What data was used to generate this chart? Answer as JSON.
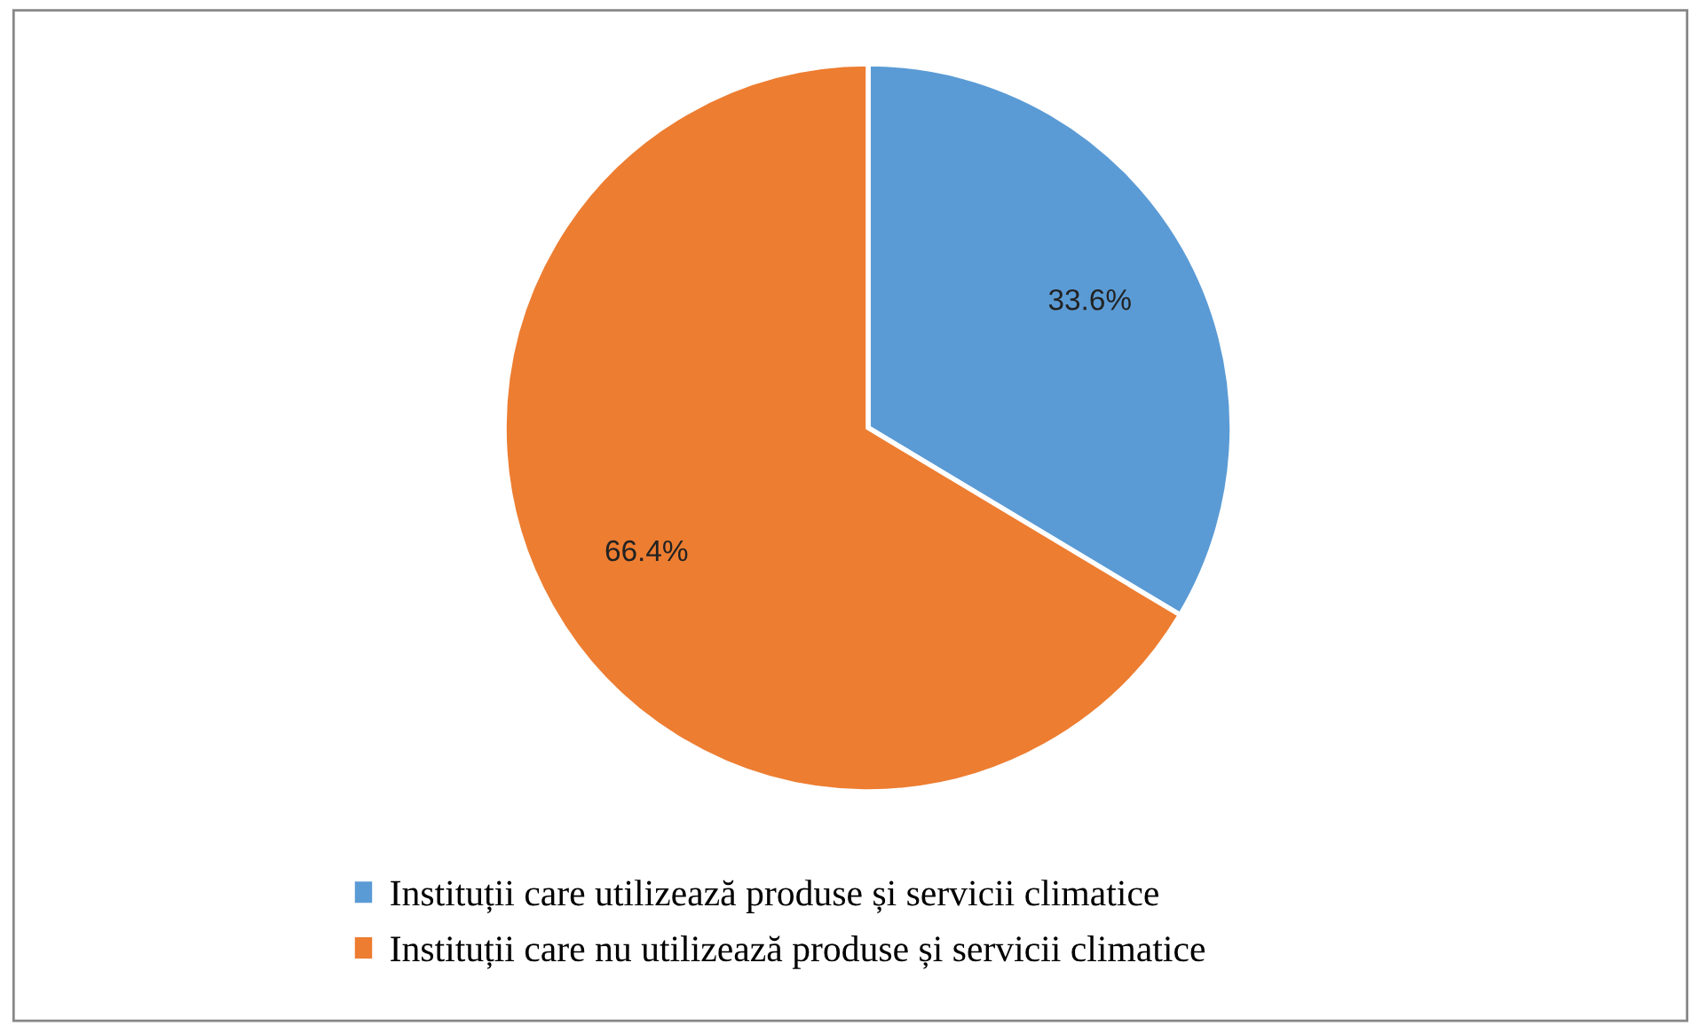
{
  "chart_data": {
    "type": "pie",
    "categories": [
      "Instituții care utilizează produse și servicii climatice",
      "Instituții care nu utilizează produse și servicii climatice"
    ],
    "values": [
      33.6,
      66.4
    ],
    "colors": [
      "#5b9bd5",
      "#ed7d31"
    ],
    "value_labels": [
      "33.6%",
      "66.4%"
    ],
    "legend": "bottom"
  }
}
